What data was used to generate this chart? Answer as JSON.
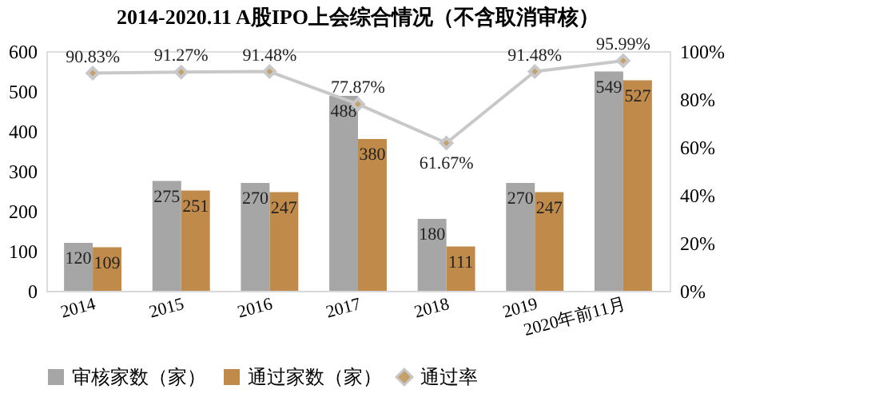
{
  "chart_data": {
    "type": "bar",
    "title": "2014-2020.11 A股IPO上会综合情况（不含取消审核）",
    "categories": [
      "2014",
      "2015",
      "2016",
      "2017",
      "2018",
      "2019",
      "2020年前11月"
    ],
    "series": [
      {
        "name": "审核家数（家）",
        "color": "#a6a6a6",
        "values": [
          120,
          275,
          270,
          488,
          180,
          270,
          549
        ],
        "value_labels": [
          "120",
          "275",
          "270",
          "488",
          "180",
          "270",
          "549"
        ]
      },
      {
        "name": "通过家数（家）",
        "color": "#c08a4a",
        "values": [
          109,
          251,
          247,
          380,
          111,
          247,
          527
        ],
        "value_labels": [
          "109",
          "251",
          "247",
          "380",
          "111",
          "247",
          "527"
        ]
      },
      {
        "name": "通过率",
        "type": "line",
        "axis": "y2",
        "color": "#c4a06a",
        "marker": "diamond",
        "values": [
          90.83,
          91.27,
          91.48,
          77.87,
          61.67,
          91.48,
          95.99
        ],
        "value_labels": [
          "90.83%",
          "91.27%",
          "91.48%",
          "77.87%",
          "61.67%",
          "91.48%",
          "95.99%"
        ]
      }
    ],
    "ylim": [
      0,
      600
    ],
    "yticks": [
      0,
      100,
      200,
      300,
      400,
      500,
      600
    ],
    "y2lim": [
      0,
      100
    ],
    "y2ticks": [
      {
        "value": 0,
        "label": "0%"
      },
      {
        "value": 20,
        "label": "20%"
      },
      {
        "value": 40,
        "label": "40%"
      },
      {
        "value": 60,
        "label": "60%"
      },
      {
        "value": 80,
        "label": "80%"
      },
      {
        "value": 100,
        "label": "100%"
      }
    ],
    "grid": false,
    "legend": "bottom"
  }
}
